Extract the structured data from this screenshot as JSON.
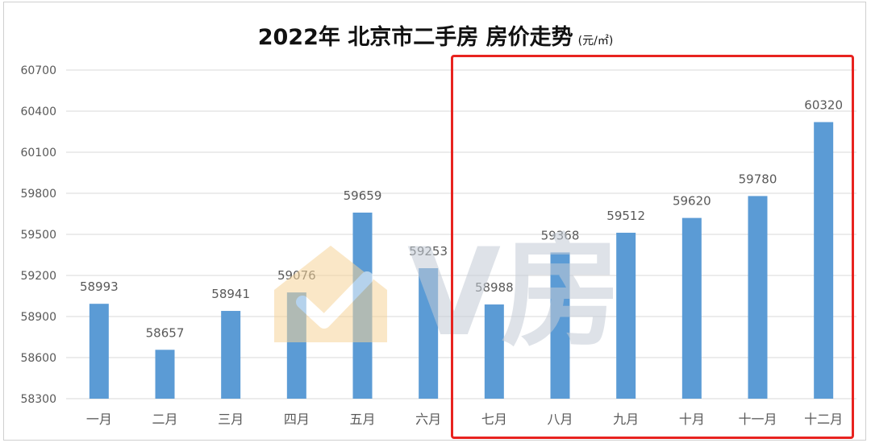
{
  "title": {
    "main": "2022年 北京市二手房 房价走势",
    "unit": "(元/㎡)"
  },
  "watermark_text": "V房",
  "colors": {
    "bar": "#5b9bd5",
    "highlight": "#e8231f",
    "grid": "#d9d9d9",
    "axis_text": "#595959"
  },
  "chart_data": {
    "type": "bar",
    "title": "2022年 北京市二手房 房价走势",
    "unit": "(元/㎡)",
    "categories": [
      "一月",
      "二月",
      "三月",
      "四月",
      "五月",
      "六月",
      "七月",
      "八月",
      "九月",
      "十月",
      "十一月",
      "十二月"
    ],
    "values": [
      58993,
      58657,
      58941,
      59076,
      59659,
      59253,
      58988,
      59368,
      59512,
      59620,
      59780,
      60320
    ],
    "ylim": [
      58300,
      60700
    ],
    "yticks": [
      58300,
      58600,
      58900,
      59200,
      59500,
      59800,
      60100,
      60400,
      60700
    ],
    "grid": true,
    "data_labels": true,
    "highlighted_categories": [
      "七月",
      "八月",
      "九月",
      "十月",
      "十一月",
      "十二月"
    ]
  }
}
